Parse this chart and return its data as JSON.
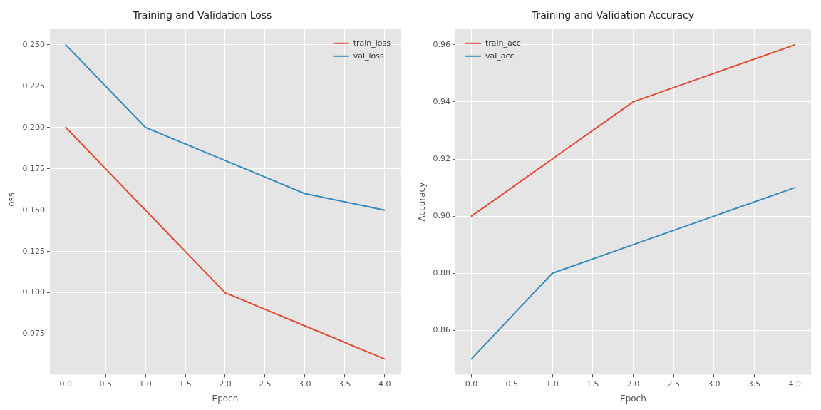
{
  "chart_data": [
    {
      "type": "line",
      "title": "Training and Validation Loss",
      "xlabel": "Epoch",
      "ylabel": "Loss",
      "x": [
        0,
        1,
        2,
        3,
        4
      ],
      "series": [
        {
          "name": "train_loss",
          "color": "#e24a33",
          "values": [
            0.2,
            0.15,
            0.1,
            0.08,
            0.06
          ]
        },
        {
          "name": "val_loss",
          "color": "#348abd",
          "values": [
            0.25,
            0.2,
            0.18,
            0.16,
            0.15
          ]
        }
      ],
      "xlim": [
        -0.2,
        4.2
      ],
      "xticks": [
        {
          "value": 0,
          "label": "0.0"
        },
        0.5,
        {
          "value": 1,
          "label": "1.0"
        },
        1.5,
        {
          "value": 2,
          "label": "2.0"
        },
        2.5,
        {
          "value": 3,
          "label": "3.0"
        },
        3.5,
        {
          "value": 4,
          "label": "4.0"
        }
      ],
      "ylim": [
        0.0505,
        0.2595
      ],
      "yticks": [
        0.075,
        {
          "value": 0.1,
          "label": "0.100"
        },
        0.125,
        {
          "value": 0.15,
          "label": "0.150"
        },
        0.175,
        {
          "value": 0.2,
          "label": "0.200"
        },
        0.225,
        {
          "value": 0.25,
          "label": "0.250"
        }
      ],
      "grid": true,
      "legend": "top right",
      "marker": "none",
      "line_style": "solid"
    },
    {
      "type": "line",
      "title": "Training and Validation Accuracy",
      "xlabel": "Epoch",
      "ylabel": "Accuracy",
      "x": [
        0,
        1,
        2,
        3,
        4
      ],
      "series": [
        {
          "name": "train_acc",
          "color": "#e24a33",
          "values": [
            0.9,
            0.92,
            0.94,
            0.95,
            0.96
          ]
        },
        {
          "name": "val_acc",
          "color": "#348abd",
          "values": [
            0.85,
            0.88,
            0.89,
            0.9,
            0.91
          ]
        }
      ],
      "xlim": [
        -0.2,
        4.2
      ],
      "xticks": [
        {
          "value": 0,
          "label": "0.0"
        },
        0.5,
        {
          "value": 1,
          "label": "1.0"
        },
        1.5,
        {
          "value": 2,
          "label": "2.0"
        },
        2.5,
        {
          "value": 3,
          "label": "3.0"
        },
        3.5,
        {
          "value": 4,
          "label": "4.0"
        }
      ],
      "ylim": [
        0.8445,
        0.9655
      ],
      "yticks": [
        0.86,
        0.88,
        {
          "value": 0.9,
          "label": "0.90"
        },
        0.92,
        0.94,
        0.96
      ],
      "grid": true,
      "legend": "top left",
      "marker": "none",
      "line_style": "solid"
    }
  ]
}
